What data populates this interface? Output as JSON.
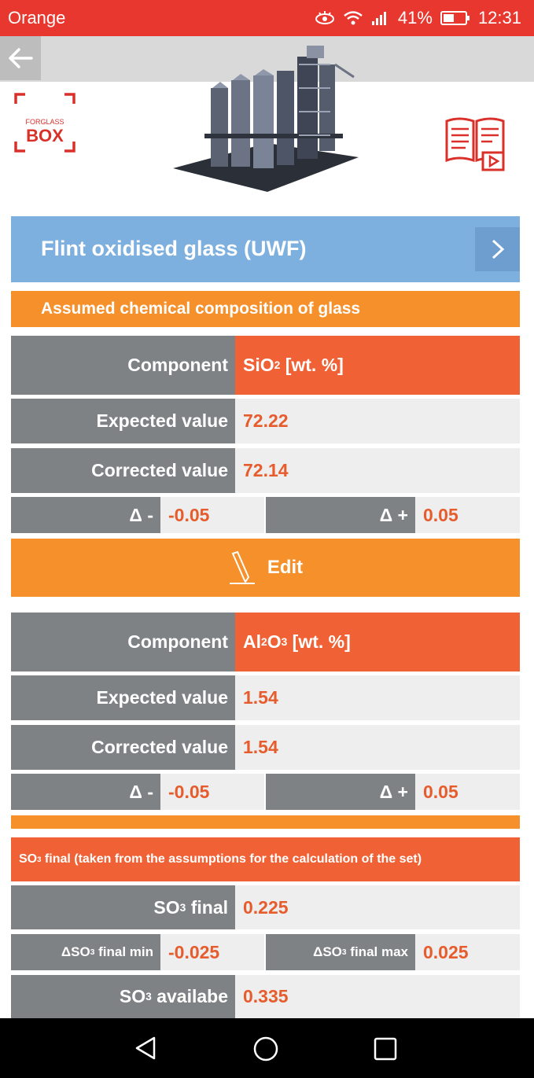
{
  "status_bar": {
    "carrier": "Orange",
    "battery": "41%",
    "time": "12:31"
  },
  "header": {
    "logo_small": "FORGLASS",
    "logo_big": "BOX"
  },
  "title": "Flint oxidised glass (UWF)",
  "section_caption": "Assumed chemical composition of glass",
  "components": [
    {
      "component_label": "Component",
      "component_name": "SiO",
      "component_sub": "2",
      "component_unit": " [wt. %]",
      "expected_label": "Expected value",
      "expected_value": "72.22",
      "corrected_label": "Corrected value",
      "corrected_value": "72.14",
      "delta_minus_label": "Δ -",
      "delta_minus_value": "-0.05",
      "delta_plus_label": "Δ +",
      "delta_plus_value": "0.05"
    },
    {
      "component_label": "Component",
      "component_name": "Al",
      "component_sub": "2",
      "component_mid": "O",
      "component_sub2": "3",
      "component_unit": " [wt. %]",
      "expected_label": "Expected value",
      "expected_value": "1.54",
      "corrected_label": "Corrected value",
      "corrected_value": "1.54",
      "delta_minus_label": "Δ -",
      "delta_minus_value": "-0.05",
      "delta_plus_label": "Δ +",
      "delta_plus_value": "0.05"
    }
  ],
  "edit_label": "Edit",
  "so3": {
    "caption_pre": "SO",
    "caption_sub": "3",
    "caption_post": " final (taken from the assumptions for the calculation of the set)",
    "final_label_pre": "SO",
    "final_label_sub": "3",
    "final_label_post": " final",
    "final_value": "0.225",
    "min_label_pre": "ΔSO",
    "min_label_sub": "3",
    "min_label_post": " final min",
    "min_value": "-0.025",
    "max_label_pre": "ΔSO",
    "max_label_sub": "3",
    "max_label_post": " final max",
    "max_value": "0.025",
    "available_label_pre": "SO",
    "available_label_sub": "3",
    "available_label_post": " availabe",
    "available_value": "0.335"
  },
  "colors": {
    "status_red": "#e8372f",
    "title_blue": "#7db0de",
    "orange": "#f5902b",
    "red_orange": "#f06236",
    "grey": "#7f8285",
    "value_text": "#e65c2c"
  },
  "icons": [
    "eye-icon",
    "wifi-icon",
    "signal-icon",
    "battery-icon",
    "back-arrow-icon",
    "chevron-right-icon",
    "pencil-icon",
    "manual-book-icon",
    "nav-back-icon",
    "nav-home-icon",
    "nav-recents-icon"
  ]
}
